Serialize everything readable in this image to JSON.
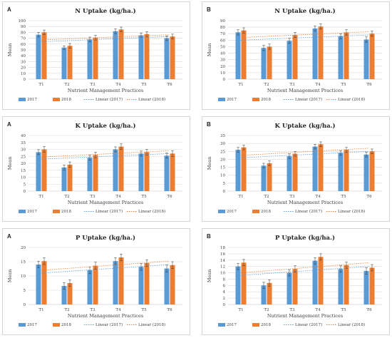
{
  "colors": {
    "s2017": "#5b9bd5",
    "s2018": "#ed7d31",
    "grid": "#d9d9d9",
    "axis": "#bfbfbf",
    "text": "#404040"
  },
  "chart_data": [
    {
      "panel": "A",
      "type": "bar",
      "title": "N Uptake (kg/ha.)",
      "xlabel": "Nutrient Management Practices",
      "ylabel": "Mean",
      "categories": [
        "T1",
        "T2",
        "T3",
        "T4",
        "T5",
        "T6"
      ],
      "ylim": [
        0,
        100
      ],
      "yticks": [
        "0",
        "10",
        "20",
        "30",
        "40",
        "50",
        "60",
        "70",
        "80",
        "90",
        "100"
      ],
      "tickStep": 10,
      "series": [
        {
          "name": "2017",
          "values": [
            76,
            54,
            68,
            82,
            75,
            70
          ],
          "errors": [
            4,
            3,
            4,
            4,
            4,
            4
          ]
        },
        {
          "name": "2018",
          "values": [
            80,
            57,
            71,
            85,
            77,
            73
          ],
          "errors": [
            4,
            4,
            4,
            4,
            4,
            4
          ]
        }
      ],
      "trendlines": [
        {
          "name": "Linear (2017)",
          "from": 64,
          "to": 73
        },
        {
          "name": "Linear (2018)",
          "from": 67,
          "to": 76
        }
      ],
      "grid": true,
      "legend": "bottom"
    },
    {
      "panel": "B",
      "type": "bar",
      "title": "N Uptake (kg/ha.)",
      "xlabel": "Nutrient Management Practices",
      "ylabel": "Mean",
      "categories": [
        "T1",
        "T2",
        "T3",
        "T4",
        "T5",
        "T6"
      ],
      "ylim": [
        0,
        90
      ],
      "yticks": [
        "0",
        "10",
        "20",
        "30",
        "40",
        "50",
        "60",
        "70",
        "80",
        "90"
      ],
      "tickStep": 10,
      "series": [
        {
          "name": "2017",
          "values": [
            72,
            48,
            59,
            78,
            66,
            61
          ],
          "errors": [
            4,
            4,
            4,
            4,
            4,
            4
          ]
        },
        {
          "name": "2018",
          "values": [
            75,
            50,
            68,
            81,
            72,
            70
          ],
          "errors": [
            4,
            4,
            4,
            4,
            4,
            4
          ]
        }
      ],
      "trendlines": [
        {
          "name": "Linear (2017)",
          "from": 60,
          "to": 68
        },
        {
          "name": "Linear (2018)",
          "from": 64,
          "to": 73
        }
      ],
      "grid": true,
      "legend": "bottom"
    },
    {
      "panel": "A",
      "type": "bar",
      "title": "K Uptake (kg/ha.)",
      "xlabel": "Nutrient Management Practices",
      "ylabel": "Mean",
      "categories": [
        "T1",
        "T2",
        "T3",
        "T4",
        "T5",
        "T6"
      ],
      "ylim": [
        0,
        40
      ],
      "yticks": [
        "0",
        "5",
        "10",
        "15",
        "20",
        "25",
        "30",
        "35",
        "40"
      ],
      "tickStep": 5,
      "series": [
        {
          "name": "2017",
          "values": [
            28,
            17,
            24,
            30,
            27,
            25.5
          ],
          "errors": [
            1.8,
            1.8,
            1.8,
            1.8,
            1.8,
            1.8
          ]
        },
        {
          "name": "2018",
          "values": [
            30,
            19,
            26,
            32,
            28,
            27
          ],
          "errors": [
            2,
            2,
            2,
            2,
            2,
            2
          ]
        }
      ],
      "trendlines": [
        {
          "name": "Linear (2017)",
          "from": 23,
          "to": 27
        },
        {
          "name": "Linear (2018)",
          "from": 24.5,
          "to": 29
        }
      ],
      "grid": true,
      "legend": "bottom"
    },
    {
      "panel": "B",
      "type": "bar",
      "title": "K Uptake (kg/ha.)",
      "xlabel": "Nutrient Management Practices",
      "ylabel": "Mean",
      "categories": [
        "T1",
        "T2",
        "T3",
        "T4",
        "T5",
        "T6"
      ],
      "ylim": [
        0,
        35
      ],
      "yticks": [
        "0",
        "5",
        "10",
        "15",
        "20",
        "25",
        "30",
        "35"
      ],
      "tickStep": 5,
      "series": [
        {
          "name": "2017",
          "values": [
            26,
            16,
            22,
            28,
            24,
            23
          ],
          "errors": [
            1.5,
            1.5,
            1.5,
            1.5,
            1.5,
            1.5
          ]
        },
        {
          "name": "2018",
          "values": [
            27.5,
            17.5,
            23.5,
            29.5,
            26,
            25
          ],
          "errors": [
            1.5,
            1.5,
            1.5,
            1.5,
            1.5,
            1.5
          ]
        }
      ],
      "trendlines": [
        {
          "name": "Linear (2017)",
          "from": 21,
          "to": 25
        },
        {
          "name": "Linear (2018)",
          "from": 22.5,
          "to": 27
        }
      ],
      "grid": true,
      "legend": "bottom"
    },
    {
      "panel": "A",
      "type": "bar",
      "title": "P Uptake (kg/ha.)",
      "xlabel": "Nutrient Management Practices",
      "ylabel": "Mean",
      "categories": [
        "T1",
        "T2",
        "T3",
        "T4",
        "T5",
        "T6"
      ],
      "ylim": [
        0,
        20
      ],
      "yticks": [
        "0",
        "5",
        "10",
        "15",
        "20"
      ],
      "tickStep": 5,
      "series": [
        {
          "name": "2017",
          "values": [
            14,
            6.5,
            12,
            15.2,
            13.2,
            12.6
          ],
          "errors": [
            1.2,
            1.2,
            1.2,
            1.2,
            1.2,
            1.2
          ]
        },
        {
          "name": "2018",
          "values": [
            15.2,
            7.5,
            13.6,
            16.5,
            14.5,
            13.8
          ],
          "errors": [
            1.2,
            1.2,
            1.2,
            1.2,
            1.2,
            1.2
          ]
        }
      ],
      "trendlines": [
        {
          "name": "Linear (2017)",
          "from": 11,
          "to": 14
        },
        {
          "name": "Linear (2018)",
          "from": 12,
          "to": 15.2
        }
      ],
      "grid": true,
      "legend": "bottom"
    },
    {
      "panel": "B",
      "type": "bar",
      "title": "P Uptake (kg/ha.)",
      "xlabel": "Nutrient Management Practices",
      "ylabel": "Mean",
      "categories": [
        "T1",
        "T2",
        "T3",
        "T4",
        "T5",
        "T6"
      ],
      "ylim": [
        0,
        18
      ],
      "yticks": [
        "0",
        "2",
        "4",
        "6",
        "8",
        "10",
        "12",
        "14",
        "16",
        "18"
      ],
      "tickStep": 2,
      "series": [
        {
          "name": "2017",
          "values": [
            12,
            6,
            10,
            13.8,
            11.2,
            10.6
          ],
          "errors": [
            1,
            1,
            1,
            1,
            1,
            1
          ]
        },
        {
          "name": "2018",
          "values": [
            13.2,
            6.8,
            11.2,
            15,
            12.4,
            11.6
          ],
          "errors": [
            1,
            1,
            1,
            1,
            1,
            1
          ]
        }
      ],
      "trendlines": [
        {
          "name": "Linear (2017)",
          "from": 9.2,
          "to": 12
        },
        {
          "name": "Linear (2018)",
          "from": 10,
          "to": 13.2
        }
      ],
      "grid": true,
      "legend": "bottom"
    }
  ]
}
